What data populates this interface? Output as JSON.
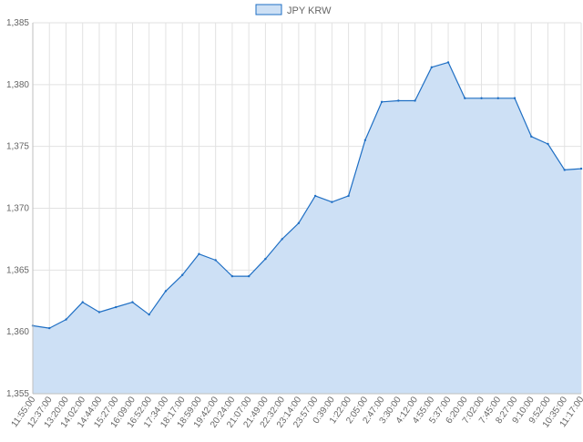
{
  "chart_data": {
    "type": "area",
    "legend": {
      "position": "top",
      "items": [
        {
          "label": "JPY KRW"
        }
      ]
    },
    "series": [
      {
        "name": "JPY KRW",
        "line_color": "#1f6fc4",
        "fill_color": "#cde0f5",
        "x": [
          "11:55:00",
          "12:37:00",
          "13:20:00",
          "14:02:00",
          "14:44:00",
          "15:27:00",
          "16:09:00",
          "16:52:00",
          "17:34:00",
          "18:17:00",
          "18:59:00",
          "19:42:00",
          "20:24:00",
          "21:07:00",
          "21:49:00",
          "22:32:00",
          "23:14:00",
          "23:57:00",
          "0:39:00",
          "1:22:00",
          "2:05:00",
          "2:47:00",
          "3:30:00",
          "4:12:00",
          "4:55:00",
          "5:37:00",
          "6:20:00",
          "7:02:00",
          "7:45:00",
          "8:27:00",
          "9:10:00",
          "9:52:00",
          "10:35:00",
          "11:17:00"
        ],
        "values": [
          1360.5,
          1360.3,
          1361.0,
          1362.4,
          1361.6,
          1362.0,
          1362.4,
          1361.4,
          1363.3,
          1364.6,
          1366.3,
          1365.8,
          1364.5,
          1364.5,
          1365.9,
          1367.5,
          1368.8,
          1371.0,
          1370.5,
          1371.0,
          1375.5,
          1378.6,
          1378.7,
          1378.7,
          1381.4,
          1381.8,
          1378.9,
          1378.9,
          1378.9,
          1378.9,
          1375.8,
          1375.2,
          1373.1,
          1373.2
        ]
      }
    ],
    "ylim": [
      1355,
      1385
    ],
    "yticks": [
      "1,355",
      "1,360",
      "1,365",
      "1,370",
      "1,375",
      "1,380",
      "1,385"
    ],
    "ytick_values": [
      1355,
      1360,
      1365,
      1370,
      1375,
      1380,
      1385
    ],
    "grid": true
  }
}
